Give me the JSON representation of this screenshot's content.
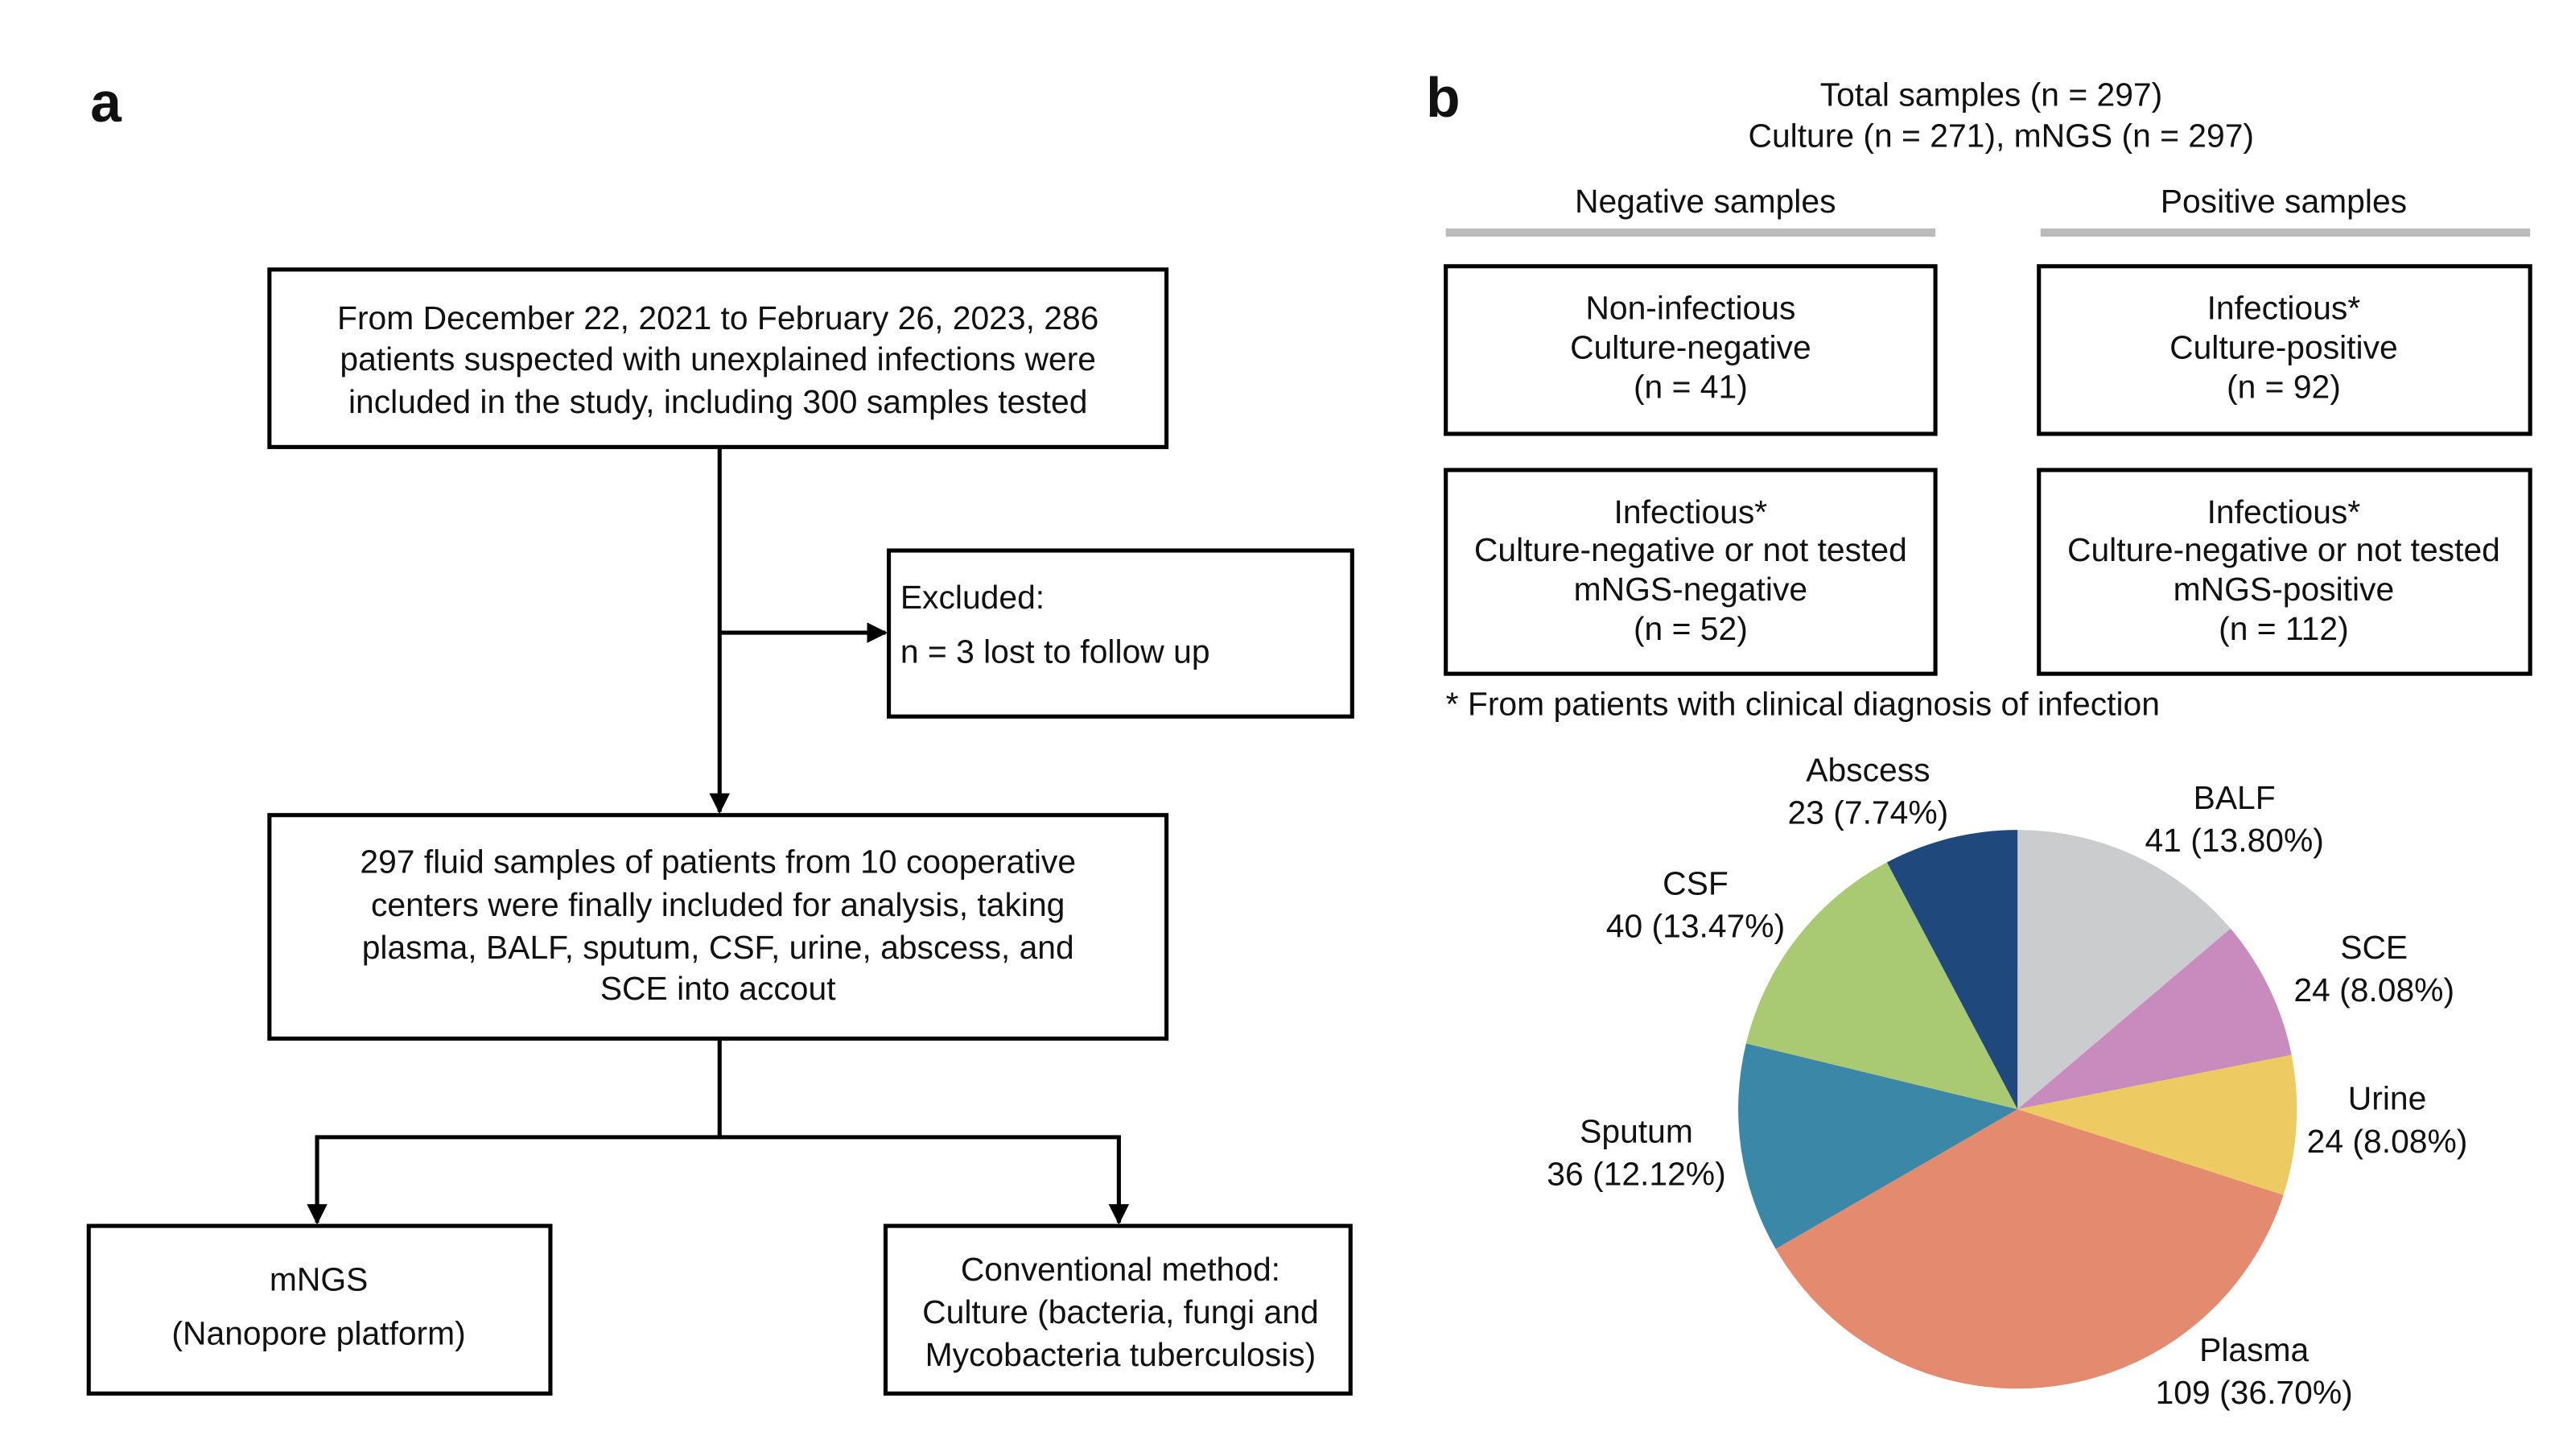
{
  "panel_a": {
    "label": "a",
    "start_box": {
      "lines": [
        "From December 22, 2021 to February 26, 2023, 286",
        "patients suspected with unexplained infections were",
        "included in the study, including 300 samples tested"
      ]
    },
    "excluded_box": {
      "lines": [
        "Excluded:",
        "n  =  3  lost to follow up"
      ]
    },
    "included_box": {
      "lines": [
        "297 fluid samples of patients from 10 cooperative",
        "centers were finally included for analysis, taking",
        "plasma, BALF, sputum, CSF, urine, abscess, and",
        "SCE into accout"
      ]
    },
    "mngs_box": {
      "lines": [
        "mNGS",
        "(Nanopore platform)"
      ]
    },
    "conventional_box": {
      "lines": [
        "Conventional method:",
        "Culture (bacteria, fungi and",
        "Mycobacteria tuberculosis)"
      ]
    }
  },
  "panel_b": {
    "label": "b",
    "header": [
      "Total  samples (n = 297)",
      "Culture (n = 271), mNGS (n = 297)"
    ],
    "negative_title": "Negative samples",
    "positive_title": "Positive samples",
    "negative_boxes": [
      {
        "lines": [
          "Non-infectious",
          "Culture-negative",
          "(n = 41)"
        ]
      },
      {
        "lines": [
          "Infectious*",
          "Culture-negative or not tested",
          "mNGS-negative",
          "(n = 52)"
        ]
      }
    ],
    "positive_boxes": [
      {
        "lines": [
          "Infectious*",
          "Culture-positive",
          "(n = 92)"
        ]
      },
      {
        "lines": [
          "Infectious*",
          "Culture-negative or not tested",
          "mNGS-positive",
          "(n = 112)"
        ]
      }
    ],
    "footnote": "* From patients with clinical diagnosis of infection"
  },
  "chart_data": {
    "type": "pie",
    "categories": [
      "BALF",
      "SCE",
      "Urine",
      "Plasma",
      "Sputum",
      "CSF",
      "Abscess"
    ],
    "values": [
      41,
      24,
      24,
      109,
      36,
      40,
      23
    ],
    "value_labels": [
      "41 (13.80%)",
      "24 (8.08%)",
      "24 (8.08%)",
      "109 (36.70%)",
      "36 (12.12%)",
      "40 (13.47%)",
      "23 (7.74%)"
    ],
    "colors": [
      "#cbcccd",
      "#c98abd",
      "#edcb62",
      "#e48a6f",
      "#3a87a7",
      "#a9ca72",
      "#1f497d"
    ]
  }
}
